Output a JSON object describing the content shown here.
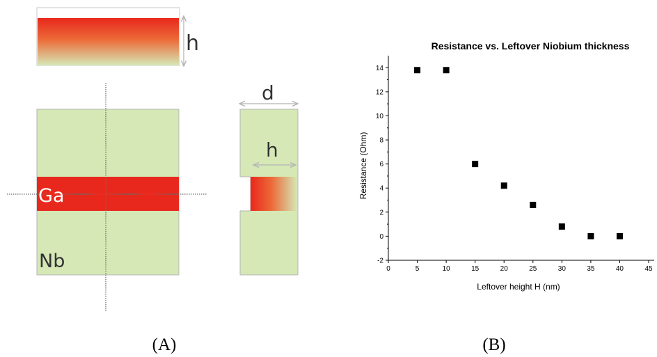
{
  "panel_a": {
    "caption": "(A)",
    "labels": {
      "top_strip_height": "h",
      "width": "d",
      "side_depth": "h",
      "implanted": "Ga",
      "substrate": "Nb"
    },
    "colors": {
      "substrate_green": "#d5e8b6",
      "gallium_red": "#e8281c",
      "outline_gray": "#b5b5b5",
      "crosshair_gray": "#6e6e6e"
    }
  },
  "panel_b": {
    "caption": "(B)"
  },
  "chart_data": {
    "type": "scatter",
    "title": "Resistance vs. Leftover Niobium thickness",
    "xlabel": "Leftover height H (nm)",
    "ylabel": "Resistance (Ohm)",
    "xlim": [
      0,
      45
    ],
    "ylim": [
      -2,
      15
    ],
    "xticks": [
      0,
      5,
      10,
      15,
      20,
      25,
      30,
      35,
      40,
      45
    ],
    "yticks": [
      -2,
      0,
      2,
      4,
      6,
      8,
      10,
      12,
      14
    ],
    "grid": false,
    "marker": "square",
    "marker_color": "#000000",
    "points": [
      {
        "x": 5,
        "y": 13.8
      },
      {
        "x": 10,
        "y": 13.8
      },
      {
        "x": 15,
        "y": 6
      },
      {
        "x": 20,
        "y": 4.2
      },
      {
        "x": 25,
        "y": 2.6
      },
      {
        "x": 30,
        "y": 0.8
      },
      {
        "x": 35,
        "y": 0
      },
      {
        "x": 40,
        "y": 0
      }
    ]
  }
}
